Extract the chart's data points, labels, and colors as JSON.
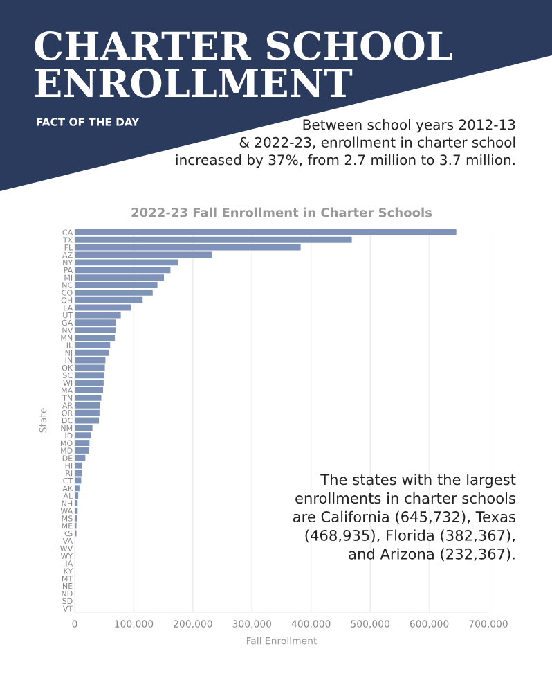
{
  "chart_data": {
    "type": "bar",
    "orientation": "horizontal",
    "title": "2022-23 Fall Enrollment in Charter Schools",
    "xlabel": "Fall Enrollment",
    "ylabel": "State",
    "categories": [
      "CA",
      "TX",
      "FL",
      "AZ",
      "NY",
      "PA",
      "MI",
      "NC",
      "CO",
      "OH",
      "LA",
      "UT",
      "GA",
      "NV",
      "MN",
      "IL",
      "NJ",
      "IN",
      "OK",
      "SC",
      "WI",
      "MA",
      "TN",
      "AR",
      "OR",
      "DC",
      "NM",
      "ID",
      "MO",
      "MD",
      "DE",
      "HI",
      "RI",
      "CT",
      "AK",
      "AL",
      "NH",
      "WA",
      "MS",
      "ME",
      "KS",
      "VA",
      "WV",
      "WY",
      "IA",
      "KY",
      "MT",
      "NE",
      "ND",
      "SD",
      "VT"
    ],
    "values": [
      645732,
      468935,
      382367,
      232367,
      175000,
      162000,
      151000,
      140000,
      132000,
      115000,
      95000,
      78000,
      70000,
      69000,
      68000,
      60000,
      58000,
      52000,
      51000,
      50000,
      49000,
      48000,
      45000,
      43000,
      42000,
      41000,
      30000,
      28000,
      25000,
      24000,
      18000,
      12000,
      12000,
      11000,
      8000,
      6000,
      5000,
      5000,
      4000,
      3000,
      3000,
      null,
      null,
      null,
      null,
      0,
      0,
      0,
      0,
      0,
      0
    ],
    "color": "#7f93b8",
    "xlim": [
      0,
      700000
    ],
    "xticks": [
      0,
      {
        "value": 100000,
        "label": "100,000"
      },
      {
        "value": 200000,
        "label": "200,000"
      },
      {
        "value": 300000,
        "label": "300,000"
      },
      {
        "value": 400000,
        "label": "400,000"
      },
      {
        "value": 500000,
        "label": "500,000"
      },
      {
        "value": 600000,
        "label": "600,000"
      },
      {
        "value": 700000,
        "label": "700,000"
      }
    ],
    "grid": "x",
    "annotations": [
      "CHARTER SCHOOL\nENROLLMENT",
      "FACT OF THE DAY",
      "Between school years 2012-13\n& 2022-23, enrollment in charter school\nincreased by 37%, from 2.7 million to 3.7 million.",
      "The states with the largest\nenrollments in charter schools\nare California (645,732), Texas\n(468,935), Florida (382,367),\nand Arizona (232,367)."
    ]
  }
}
